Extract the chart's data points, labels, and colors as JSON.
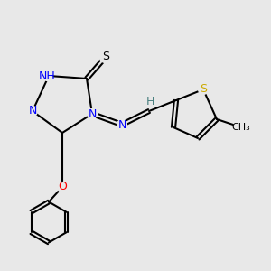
{
  "bg_color": "#e8e8e8",
  "figsize": [
    3.0,
    3.0
  ],
  "dpi": 100,
  "atom_colors": {
    "N": "#0000ff",
    "S": "#ccaa00",
    "S_thiol": "#000000",
    "O": "#ff0000",
    "H": "#4a8080",
    "C": "#000000"
  },
  "bond_color": "#000000",
  "bond_width": 1.5,
  "font_size": 9,
  "label_fontsize": 9
}
